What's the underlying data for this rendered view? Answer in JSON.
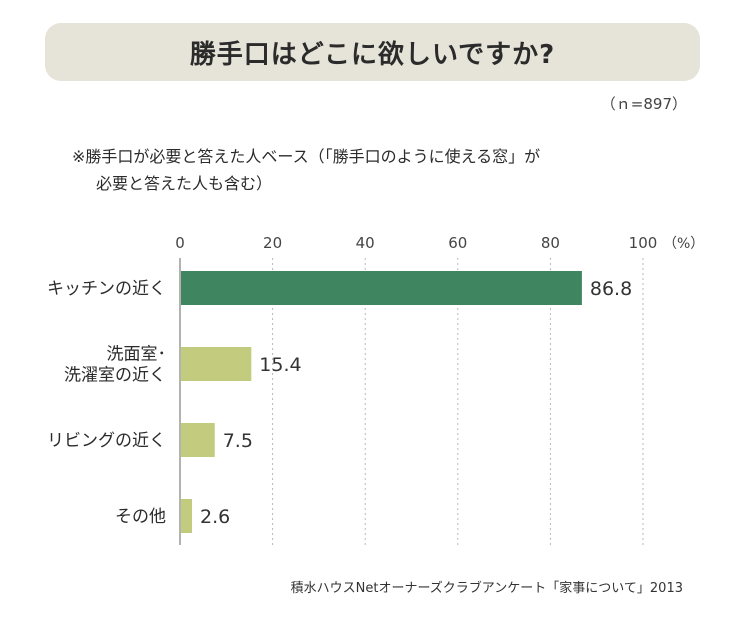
{
  "header": {
    "title": "勝手口はどこに欲しいですか?",
    "sample_size": "（ｎ=897）"
  },
  "note": {
    "line1": "※勝手口が必要と答えた人ベース（「勝手口のように使える窓」が",
    "line2": "必要と答えた人も含む）"
  },
  "source": "積水ハウスNetオーナーズクラブアンケート「家事について」2013",
  "colors": {
    "primary_bar": "#3f8560",
    "secondary_bar": "#c2cb7e",
    "grid": "#b8b8b8",
    "axis": "#999999"
  },
  "chart_data": {
    "type": "bar",
    "orientation": "horizontal",
    "categories": [
      [
        "キッチンの近く"
      ],
      [
        "洗面室･",
        "洗濯室の近く"
      ],
      [
        "リビングの近く"
      ],
      [
        "その他"
      ]
    ],
    "values": [
      86.8,
      15.4,
      7.5,
      2.6
    ],
    "value_labels": [
      "86.8",
      "15.4",
      "7.5",
      "2.6"
    ],
    "xlim": [
      0,
      100
    ],
    "ticks": [
      0,
      20,
      40,
      60,
      80,
      100
    ],
    "tick_labels": [
      "0",
      "20",
      "40",
      "60",
      "80",
      "100"
    ],
    "unit_label": "（%）",
    "grid": true,
    "grid_style": "dashed-vertical",
    "highlight_index": 0
  }
}
